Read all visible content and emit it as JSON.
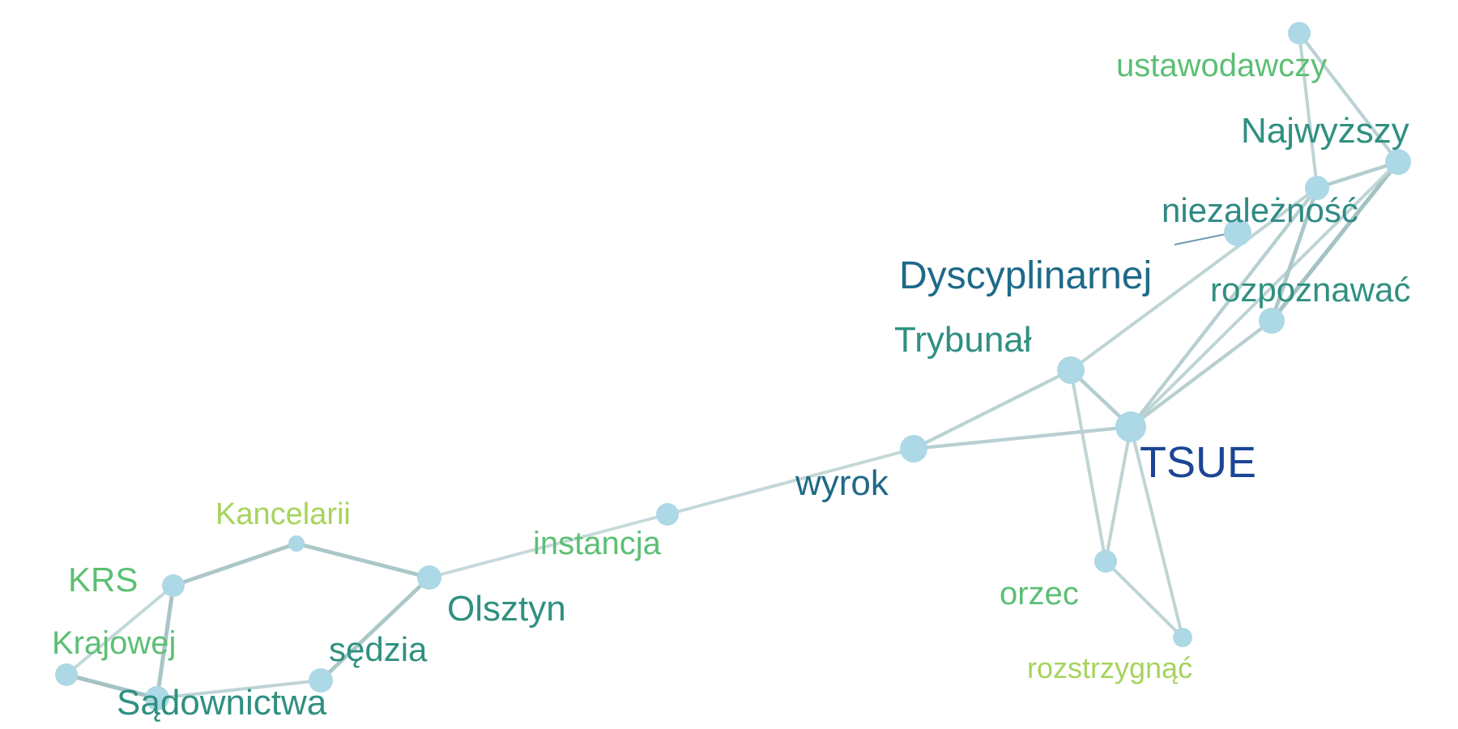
{
  "nodes": [
    {
      "id": "ustawodawczy",
      "label": "ustawodawczy",
      "color": "#5cbf74"
    },
    {
      "id": "najwyzszy",
      "label": "Najwyższy",
      "color": "#2f9080"
    },
    {
      "id": "niezaleznosc",
      "label": "niezależność",
      "color": "#2e8a84"
    },
    {
      "id": "dyscyplinarnej",
      "label": "Dyscyplinarnej",
      "color": "#1e6a88"
    },
    {
      "id": "rozpoznawac",
      "label": "rozpoznawać",
      "color": "#2f9080"
    },
    {
      "id": "trybunal",
      "label": "Trybunał",
      "color": "#2f9080"
    },
    {
      "id": "tsue",
      "label": "TSUE",
      "color": "#1b4595"
    },
    {
      "id": "wyrok",
      "label": "wyrok",
      "color": "#1f6a87"
    },
    {
      "id": "instancja",
      "label": "instancja",
      "color": "#5cbf74"
    },
    {
      "id": "orzec",
      "label": "orzec",
      "color": "#5cbf74"
    },
    {
      "id": "rozstrzygnac",
      "label": "rozstrzygnąć",
      "color": "#a6d45c"
    },
    {
      "id": "kancelarii",
      "label": "Kancelarii",
      "color": "#a6d45c"
    },
    {
      "id": "krs",
      "label": "KRS",
      "color": "#5cbf74"
    },
    {
      "id": "olsztyn",
      "label": "Olsztyn",
      "color": "#2f9080"
    },
    {
      "id": "krajowej",
      "label": "Krajowej",
      "color": "#5cbf74"
    },
    {
      "id": "sedzia",
      "label": "sędzia",
      "color": "#2f9080"
    },
    {
      "id": "sadownictwa",
      "label": "Sądownictwa",
      "color": "#2f9080"
    }
  ],
  "edges": [
    {
      "source": "ustawodawczy",
      "target": "niezaleznosc",
      "strength": 0.35
    },
    {
      "source": "ustawodawczy",
      "target": "najwyzszy",
      "strength": 0.4
    },
    {
      "source": "najwyzszy",
      "target": "niezaleznosc",
      "strength": 0.5
    },
    {
      "source": "najwyzszy",
      "target": "rozpoznawac",
      "strength": 0.7
    },
    {
      "source": "najwyzszy",
      "target": "tsue",
      "strength": 0.35
    },
    {
      "source": "niezaleznosc",
      "target": "rozpoznawac",
      "strength": 0.6
    },
    {
      "source": "niezaleznosc",
      "target": "trybunal",
      "strength": 0.35
    },
    {
      "source": "niezaleznosc",
      "target": "tsue",
      "strength": 0.45
    },
    {
      "source": "trybunal",
      "target": "tsue",
      "strength": 0.5
    },
    {
      "source": "trybunal",
      "target": "wyrok",
      "strength": 0.4
    },
    {
      "source": "trybunal",
      "target": "orzec",
      "strength": 0.35
    },
    {
      "source": "tsue",
      "target": "rozpoznawac",
      "strength": 0.45
    },
    {
      "source": "tsue",
      "target": "wyrok",
      "strength": 0.45
    },
    {
      "source": "tsue",
      "target": "orzec",
      "strength": 0.35
    },
    {
      "source": "tsue",
      "target": "rozstrzygnac",
      "strength": 0.35
    },
    {
      "source": "orzec",
      "target": "rozstrzygnac",
      "strength": 0.35
    },
    {
      "source": "wyrok",
      "target": "instancja",
      "strength": 0.3
    },
    {
      "source": "instancja",
      "target": "olsztyn",
      "strength": 0.25
    },
    {
      "source": "olsztyn",
      "target": "kancelarii",
      "strength": 0.6
    },
    {
      "source": "olsztyn",
      "target": "sedzia",
      "strength": 0.6
    },
    {
      "source": "kancelarii",
      "target": "krs",
      "strength": 0.6
    },
    {
      "source": "krs",
      "target": "sadownictwa",
      "strength": 0.65
    },
    {
      "source": "krs",
      "target": "krajowej",
      "strength": 0.3
    },
    {
      "source": "krajowej",
      "target": "sadownictwa",
      "strength": 0.7
    },
    {
      "source": "sadownictwa",
      "target": "sedzia",
      "strength": 0.35
    }
  ],
  "colors": {
    "node_fill": "#add8e6",
    "edge": "#8fb3b3",
    "pointer": "#6a9ab0"
  }
}
